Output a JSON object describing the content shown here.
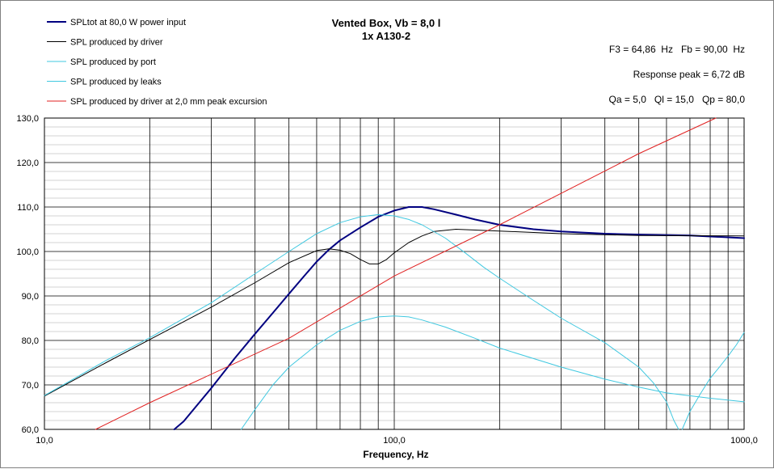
{
  "chart_data": {
    "type": "line",
    "title": "Vented Box, Vb = 8,0 l",
    "subtitle": "1x A130-2",
    "xlabel": "Frequency, Hz",
    "ylabel": "",
    "x_scale": "log",
    "xlim": [
      10,
      1000
    ],
    "ylim": [
      60,
      130
    ],
    "grid": true,
    "legend_position": "top-left",
    "x_tick_labels": [
      {
        "x": 10,
        "label": "10,0"
      },
      {
        "x": 100,
        "label": "100,0"
      },
      {
        "x": 1000,
        "label": "1000,0"
      }
    ],
    "y_ticks": [
      60,
      70,
      80,
      90,
      100,
      110,
      120,
      130
    ],
    "y_tick_labels": [
      "60,0",
      "70,0",
      "80,0",
      "90,0",
      "100,0",
      "110,0",
      "120,0",
      "130,0"
    ],
    "annotations": [
      "F3 = 64,86  Hz   Fb = 90,00  Hz",
      "Response peak = 6,72 dB",
      "Qa = 5,0   Ql = 15,0   Qp = 80,0"
    ],
    "series": [
      {
        "name": "SPLtot at 80,0 W power input",
        "color": "#000080",
        "width": 2,
        "points": [
          [
            23.5,
            60
          ],
          [
            25,
            61.8
          ],
          [
            30,
            69.3
          ],
          [
            35,
            76
          ],
          [
            40,
            81.5
          ],
          [
            45,
            86.2
          ],
          [
            50,
            90.5
          ],
          [
            55,
            94.3
          ],
          [
            60,
            97.7
          ],
          [
            65,
            100.4
          ],
          [
            70,
            102.5
          ],
          [
            80,
            105.4
          ],
          [
            90,
            107.8
          ],
          [
            100,
            109.2
          ],
          [
            110,
            110
          ],
          [
            120,
            110
          ],
          [
            130,
            109.5
          ],
          [
            150,
            108.3
          ],
          [
            170,
            107.2
          ],
          [
            200,
            106
          ],
          [
            250,
            105
          ],
          [
            300,
            104.5
          ],
          [
            400,
            104
          ],
          [
            500,
            103.8
          ],
          [
            700,
            103.6
          ],
          [
            1000,
            103
          ]
        ]
      },
      {
        "name": "SPL produced by driver",
        "color": "#000000",
        "width": 1,
        "points": [
          [
            10,
            67.5
          ],
          [
            15,
            75
          ],
          [
            20,
            80.2
          ],
          [
            30,
            87.5
          ],
          [
            40,
            93
          ],
          [
            50,
            97.5
          ],
          [
            60,
            100.2
          ],
          [
            65,
            100.6
          ],
          [
            70,
            100.3
          ],
          [
            75,
            99.5
          ],
          [
            80,
            98.2
          ],
          [
            85,
            97.2
          ],
          [
            90,
            97.2
          ],
          [
            95,
            98.2
          ],
          [
            100,
            99.7
          ],
          [
            110,
            102
          ],
          [
            120,
            103.5
          ],
          [
            130,
            104.5
          ],
          [
            150,
            105
          ],
          [
            200,
            104.6
          ],
          [
            300,
            104
          ],
          [
            500,
            103.6
          ],
          [
            1000,
            103.5
          ]
        ]
      },
      {
        "name": "SPL produced by port",
        "color": "#40C8E0",
        "width": 1,
        "points": [
          [
            10,
            67.6
          ],
          [
            15,
            75.5
          ],
          [
            20,
            80.6
          ],
          [
            30,
            88.5
          ],
          [
            40,
            95
          ],
          [
            50,
            100
          ],
          [
            60,
            104
          ],
          [
            70,
            106.5
          ],
          [
            80,
            107.8
          ],
          [
            90,
            108.3
          ],
          [
            100,
            108
          ],
          [
            110,
            107.2
          ],
          [
            120,
            106
          ],
          [
            140,
            103
          ],
          [
            160,
            99.6
          ],
          [
            180,
            96.5
          ],
          [
            200,
            94
          ],
          [
            250,
            89
          ],
          [
            300,
            85
          ],
          [
            400,
            79.5
          ],
          [
            500,
            74
          ],
          [
            550,
            70.5
          ],
          [
            600,
            66.2
          ],
          [
            630,
            62
          ],
          [
            650,
            60
          ]
        ]
      },
      {
        "name": "SPL produced by leaks",
        "color": "#40C8E0",
        "width": 1,
        "points": [
          [
            36.5,
            60
          ],
          [
            40,
            64.5
          ],
          [
            45,
            70
          ],
          [
            50,
            74
          ],
          [
            60,
            79
          ],
          [
            70,
            82.3
          ],
          [
            80,
            84.3
          ],
          [
            90,
            85.3
          ],
          [
            100,
            85.5
          ],
          [
            110,
            85.3
          ],
          [
            120,
            84.6
          ],
          [
            140,
            83
          ],
          [
            170,
            80.5
          ],
          [
            200,
            78.3
          ],
          [
            300,
            74
          ],
          [
            400,
            71.3
          ],
          [
            500,
            69.5
          ],
          [
            600,
            68.2
          ],
          [
            800,
            67
          ],
          [
            1000,
            66.2
          ]
        ]
      },
      {
        "name": "",
        "color": "#40C8E0",
        "width": 1,
        "legend": false,
        "points": [
          [
            665,
            60
          ],
          [
            700,
            64
          ],
          [
            750,
            68
          ],
          [
            800,
            71.5
          ],
          [
            850,
            74
          ],
          [
            900,
            76.5
          ],
          [
            950,
            79
          ],
          [
            1000,
            81.8
          ]
        ]
      },
      {
        "name": "SPL produced by driver at 2,0 mm peak excursion",
        "color": "#E02020",
        "width": 1,
        "points": [
          [
            14,
            60
          ],
          [
            20,
            66
          ],
          [
            50,
            80.5
          ],
          [
            100,
            94.5
          ],
          [
            200,
            106
          ],
          [
            500,
            122
          ],
          [
            830,
            130
          ]
        ]
      }
    ]
  }
}
